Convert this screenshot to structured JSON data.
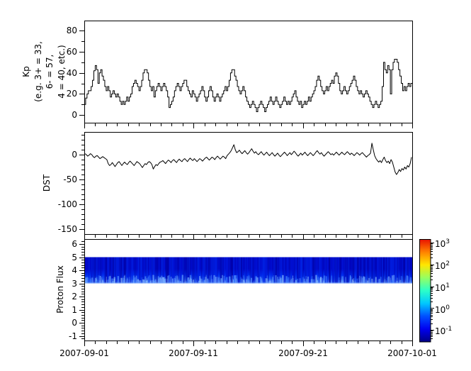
{
  "background": "#ffffff",
  "frame_color": "#000000",
  "x_axis": {
    "tick_labels": [
      "2007-09-01",
      "2007-09-11",
      "2007-09-21",
      "2007-10-01"
    ],
    "tick_days": [
      0,
      10,
      20,
      30
    ],
    "minor_tick_interval_days": 1,
    "span_days": 30
  },
  "colorbar": {
    "scale": "log10",
    "ticks": [
      {
        "base": "10",
        "exp": "3",
        "value": 1000
      },
      {
        "base": "10",
        "exp": "2",
        "value": 100
      },
      {
        "base": "10",
        "exp": "1",
        "value": 10
      },
      {
        "base": "10",
        "exp": "0",
        "value": 1
      },
      {
        "base": "10",
        "exp": "-1",
        "value": 0.1
      }
    ],
    "colormap": "jet",
    "jet_stops": [
      "#000084",
      "#0000f0",
      "#0050ff",
      "#00c8ff",
      "#2cffc8",
      "#97ff60",
      "#ffe600",
      "#ff8000",
      "#e81000"
    ]
  },
  "chart_data": [
    {
      "id": "kp",
      "type": "step-line",
      "ylabel_lines": [
        "Kp",
        "(e.g. 3+ = 33,",
        "6- = 57,",
        "4 = 40, etc.)"
      ],
      "yticks": [
        0,
        20,
        40,
        60,
        80
      ],
      "y_minor_step": 10,
      "ylim": [
        -7.5,
        90
      ],
      "x_start": "2007-09-01",
      "x_end": "2007-10-01",
      "samples_per_day": 8,
      "line_color": "#000000",
      "values": [
        10,
        16,
        20,
        23,
        23,
        27,
        33,
        42,
        47,
        43,
        30,
        40,
        43,
        37,
        33,
        27,
        23,
        27,
        23,
        17,
        20,
        23,
        20,
        17,
        20,
        17,
        13,
        10,
        13,
        10,
        13,
        17,
        13,
        17,
        20,
        27,
        30,
        33,
        30,
        27,
        23,
        27,
        33,
        40,
        43,
        43,
        40,
        33,
        27,
        23,
        27,
        17,
        23,
        27,
        30,
        27,
        23,
        27,
        30,
        27,
        23,
        17,
        7,
        10,
        13,
        17,
        23,
        27,
        30,
        27,
        23,
        27,
        30,
        33,
        33,
        27,
        23,
        20,
        17,
        23,
        20,
        17,
        13,
        17,
        20,
        23,
        27,
        23,
        17,
        13,
        17,
        23,
        27,
        23,
        17,
        13,
        17,
        20,
        17,
        13,
        17,
        20,
        23,
        27,
        23,
        27,
        33,
        40,
        43,
        43,
        37,
        33,
        27,
        23,
        20,
        23,
        27,
        23,
        17,
        13,
        10,
        7,
        10,
        13,
        10,
        7,
        3,
        7,
        10,
        13,
        10,
        7,
        3,
        7,
        10,
        13,
        17,
        13,
        10,
        13,
        17,
        13,
        10,
        7,
        10,
        13,
        17,
        13,
        10,
        13,
        10,
        13,
        17,
        20,
        23,
        17,
        13,
        10,
        13,
        7,
        10,
        13,
        10,
        13,
        17,
        13,
        17,
        20,
        23,
        27,
        33,
        37,
        33,
        27,
        23,
        20,
        23,
        27,
        23,
        27,
        30,
        33,
        30,
        37,
        40,
        37,
        30,
        23,
        20,
        23,
        27,
        23,
        20,
        23,
        27,
        30,
        33,
        37,
        33,
        27,
        23,
        20,
        23,
        20,
        17,
        20,
        23,
        20,
        17,
        13,
        10,
        7,
        10,
        13,
        10,
        7,
        10,
        13,
        27,
        50,
        43,
        40,
        47,
        43,
        20,
        43,
        50,
        53,
        53,
        50,
        43,
        37,
        30,
        23,
        27,
        23,
        27,
        30,
        27,
        30
      ]
    },
    {
      "id": "dst",
      "type": "line",
      "ylabel": "DST",
      "yticks": [
        0,
        -50,
        -100,
        -150
      ],
      "y_minor_step": 10,
      "ylim": [
        -160,
        46
      ],
      "x_start": "2007-09-01",
      "x_end": "2007-10-01",
      "samples_per_day": 8,
      "line_color": "#000000",
      "values": [
        2,
        0,
        -3,
        -1,
        2,
        0,
        -4,
        -6,
        -3,
        -2,
        -5,
        -8,
        -6,
        -4,
        -6,
        -8,
        -10,
        -18,
        -22,
        -20,
        -16,
        -20,
        -24,
        -20,
        -16,
        -14,
        -18,
        -22,
        -18,
        -15,
        -18,
        -20,
        -16,
        -13,
        -16,
        -19,
        -22,
        -18,
        -14,
        -16,
        -18,
        -22,
        -26,
        -22,
        -18,
        -20,
        -16,
        -14,
        -16,
        -20,
        -29,
        -24,
        -20,
        -22,
        -18,
        -15,
        -14,
        -12,
        -15,
        -18,
        -14,
        -11,
        -13,
        -16,
        -12,
        -10,
        -13,
        -16,
        -12,
        -9,
        -12,
        -14,
        -10,
        -8,
        -11,
        -14,
        -10,
        -7,
        -10,
        -12,
        -8,
        -11,
        -14,
        -11,
        -8,
        -10,
        -13,
        -10,
        -7,
        -5,
        -8,
        -11,
        -8,
        -5,
        -7,
        -10,
        -6,
        -3,
        -6,
        -9,
        -6,
        -3,
        -5,
        -8,
        -2,
        1,
        4,
        8,
        14,
        20,
        10,
        4,
        6,
        9,
        5,
        2,
        5,
        8,
        4,
        1,
        4,
        8,
        12,
        7,
        3,
        6,
        2,
        0,
        3,
        6,
        2,
        -1,
        2,
        5,
        1,
        -2,
        1,
        4,
        0,
        -3,
        0,
        3,
        -1,
        -4,
        -1,
        2,
        5,
        2,
        -2,
        1,
        4,
        0,
        3,
        7,
        4,
        0,
        -3,
        0,
        3,
        -1,
        2,
        5,
        1,
        -2,
        1,
        4,
        1,
        -2,
        1,
        5,
        8,
        4,
        1,
        4,
        0,
        -3,
        0,
        3,
        6,
        3,
        0,
        2,
        -1,
        2,
        5,
        2,
        -1,
        2,
        5,
        2,
        0,
        3,
        6,
        3,
        0,
        3,
        1,
        -2,
        1,
        4,
        2,
        -1,
        2,
        4,
        1,
        -2,
        -5,
        -2,
        0,
        3,
        23,
        10,
        -2,
        -8,
        -12,
        -15,
        -12,
        -16,
        -10,
        -5,
        -12,
        -16,
        -13,
        -18,
        -10,
        -15,
        -25,
        -35,
        -40,
        -36,
        -30,
        -34,
        -28,
        -31,
        -25,
        -29,
        -22,
        -25,
        -18,
        -5
      ]
    },
    {
      "id": "proton_flux",
      "type": "heatmap",
      "ylabel": "Proton Flux",
      "yticks": [
        -1,
        0,
        1,
        2,
        3,
        4,
        5,
        6
      ],
      "y_minor_step": 0.2,
      "ylim": [
        -1.35,
        6.4
      ],
      "x_start": "2007-09-01",
      "x_end": "2007-10-01",
      "band": {
        "y_from": 3.0,
        "y_to": 5.0,
        "description": "continuous proton flux band for the whole month; flux ~0.05-0.3 (dark blue) in channels 3.6-5.0, brighter ~0.3-2 (light blue streaks) in channels 3.0-3.6",
        "base_color": "#0008c8",
        "mid_color": "#0030f0",
        "bottom_color": "#2a6af8",
        "edge_color": "#7fb0ff",
        "streak_colors_dark": [
          "#0000a0",
          "#0014d8",
          "#0028e8"
        ],
        "streak_colors_bright": [
          "#2f6dfa",
          "#5c97ff",
          "#82b6ff"
        ]
      }
    }
  ]
}
